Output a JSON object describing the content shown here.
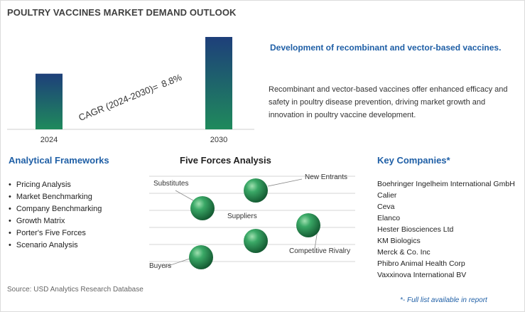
{
  "title": "POULTRY VACCINES MARKET DEMAND OUTLOOK",
  "chart_data": {
    "type": "bar",
    "categories": [
      "2024",
      "2030"
    ],
    "values": [
      1.0,
      1.66
    ],
    "annotation": {
      "label": "CAGR (2024-2030)=",
      "value": "8.8%"
    }
  },
  "highlight": {
    "title": "Development of recombinant and vector-based vaccines.",
    "text": "Recombinant and vector-based vaccines offer enhanced efficacy and safety in poultry disease prevention, driving market growth and innovation in poultry vaccine development."
  },
  "frameworks": {
    "title": "Analytical Frameworks",
    "items": [
      "Pricing Analysis",
      "Market Benchmarking",
      "Company Benchmarking",
      "Growth Matrix",
      "Porter's Five Forces",
      "Scenario Analysis"
    ]
  },
  "five_forces": {
    "title": "Five Forces Analysis",
    "labels": {
      "substitutes": "Substitutes",
      "new_entrants": "New Entrants",
      "suppliers": "Suppliers",
      "competitive_rivalry": "Competitive Rivalry",
      "buyers": "Buyers"
    }
  },
  "companies": {
    "title": "Key Companies*",
    "items": [
      "Boehringer Ingelheim International GmbH",
      "Calier",
      "Ceva",
      "Elanco",
      "Hester Biosciences Ltd",
      "KM Biologics",
      "Merck & Co. Inc",
      "Phibro Animal Health Corp",
      "Vaxxinova International BV"
    ],
    "note": "*- Full list available in report"
  },
  "source": "Source: USD Analytics Research Database",
  "colors": {
    "accent": "#1f5fa6",
    "bar_top": "#1e3f7a",
    "bar_bottom": "#1f8a5c",
    "sphere": "#2e9a5a"
  }
}
